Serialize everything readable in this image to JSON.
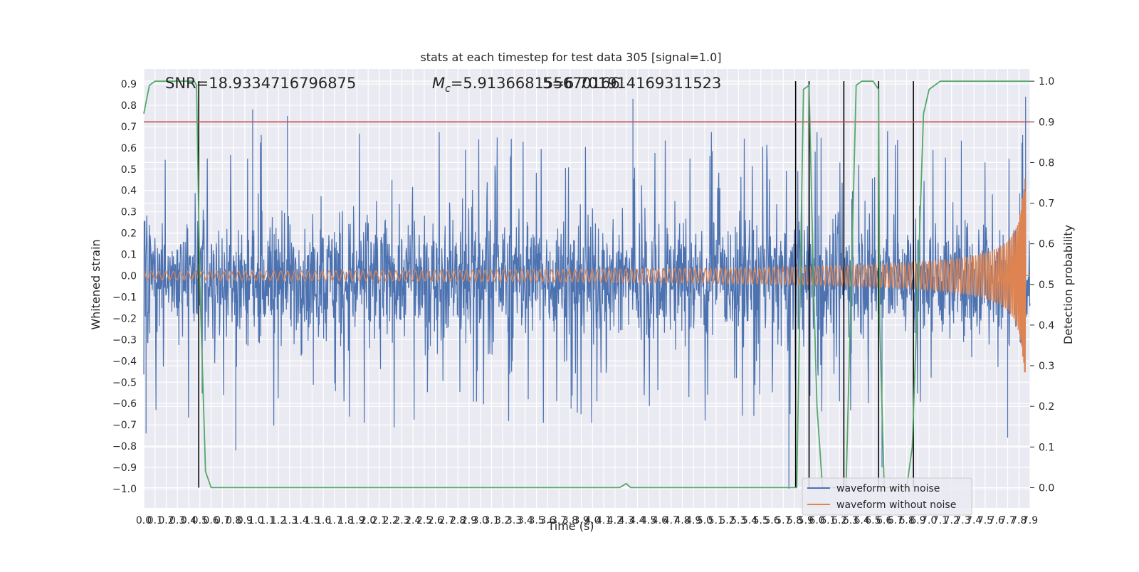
{
  "chart_data": {
    "type": "line",
    "title": "stats at each timestep for test data 305 [signal=1.0]",
    "xlabel": "Time (s)",
    "ylabel": "Whitened strain",
    "y2label": "Detection probability",
    "xlim": [
      0.0,
      7.9
    ],
    "ylim": [
      -1.09,
      0.97
    ],
    "y2lim": [
      -0.05,
      1.03
    ],
    "yticks": [
      -1.0,
      -0.9,
      -0.8,
      -0.7,
      -0.6,
      -0.5,
      -0.4,
      -0.3,
      -0.2,
      -0.1,
      0.0,
      0.1,
      0.2,
      0.3,
      0.4,
      0.5,
      0.6,
      0.7,
      0.8,
      0.9
    ],
    "y2ticks": [
      0.0,
      0.1,
      0.2,
      0.3,
      0.4,
      0.5,
      0.6,
      0.7,
      0.8,
      0.9,
      1.0
    ],
    "xtick_step": 0.1,
    "annotations": {
      "snr": "SNR=18.9334716796875",
      "mc_prefix": "M",
      "mc_sub": "c",
      "mc_value": "=5.913668155670166",
      "overlap": "5=6.701914169311523"
    },
    "threshold": {
      "value": 0.9,
      "axis": "right",
      "color": "#c44e52"
    },
    "trigger_lines_x": [
      0.49,
      5.81,
      5.93,
      6.24,
      6.55,
      6.86
    ],
    "series": [
      {
        "name": "waveform with noise",
        "color": "#4c72b0",
        "envelope": {
          "typical_high": 0.3,
          "typical_low": -0.32,
          "peak_high": 0.78,
          "peak_low": -0.98
        },
        "spikes": [
          [
            0.02,
            -0.74
          ],
          [
            0.97,
            0.78
          ],
          [
            0.82,
            -0.82
          ],
          [
            1.28,
            0.75
          ],
          [
            4.36,
            0.83
          ],
          [
            5.75,
            -1.0
          ],
          [
            6.58,
            -0.9
          ],
          [
            7.7,
            -0.76
          ],
          [
            7.86,
            0.84
          ]
        ]
      },
      {
        "name": "waveform without noise",
        "color": "#dd8452",
        "amplitude_start": 0.02,
        "amplitude_end": 0.47,
        "merger_time": 7.86,
        "cycles": 190
      },
      {
        "name": "detection probability",
        "axis": "right",
        "color": "#55a868",
        "x": [
          0.0,
          0.05,
          0.1,
          0.2,
          0.3,
          0.4,
          0.45,
          0.47,
          0.5,
          0.55,
          0.6,
          0.65,
          0.7,
          1.0,
          2.0,
          3.0,
          4.0,
          4.24,
          4.3,
          4.34,
          4.38,
          4.42,
          5.0,
          5.5,
          5.75,
          5.82,
          5.88,
          5.93,
          5.97,
          6.0,
          6.05,
          6.1,
          6.15,
          6.2,
          6.23,
          6.26,
          6.35,
          6.4,
          6.45,
          6.5,
          6.55,
          6.56,
          6.6,
          6.62,
          6.65,
          6.7,
          6.75,
          6.8,
          6.85,
          6.9,
          6.95,
          7.0,
          7.05,
          7.1,
          7.5,
          7.9
        ],
        "y": [
          0.92,
          0.99,
          1.0,
          1.0,
          1.0,
          1.0,
          1.0,
          0.99,
          0.5,
          0.04,
          0.0,
          0.0,
          0.0,
          0.0,
          0.0,
          0.0,
          0.0,
          0.0,
          0.01,
          0.0,
          0.0,
          0.0,
          0.0,
          0.0,
          0.0,
          0.0,
          0.98,
          0.99,
          0.5,
          0.2,
          0.0,
          0.0,
          0.0,
          0.0,
          0.0,
          0.0,
          0.99,
          1.0,
          1.0,
          1.0,
          0.98,
          0.4,
          0.0,
          0.0,
          0.0,
          0.0,
          0.0,
          0.0,
          0.1,
          0.5,
          0.92,
          0.98,
          0.99,
          1.0,
          1.0,
          1.0
        ]
      }
    ],
    "legend": {
      "position": "lower-right",
      "entries": [
        "waveform with noise",
        "waveform without noise"
      ]
    },
    "grid": true
  }
}
